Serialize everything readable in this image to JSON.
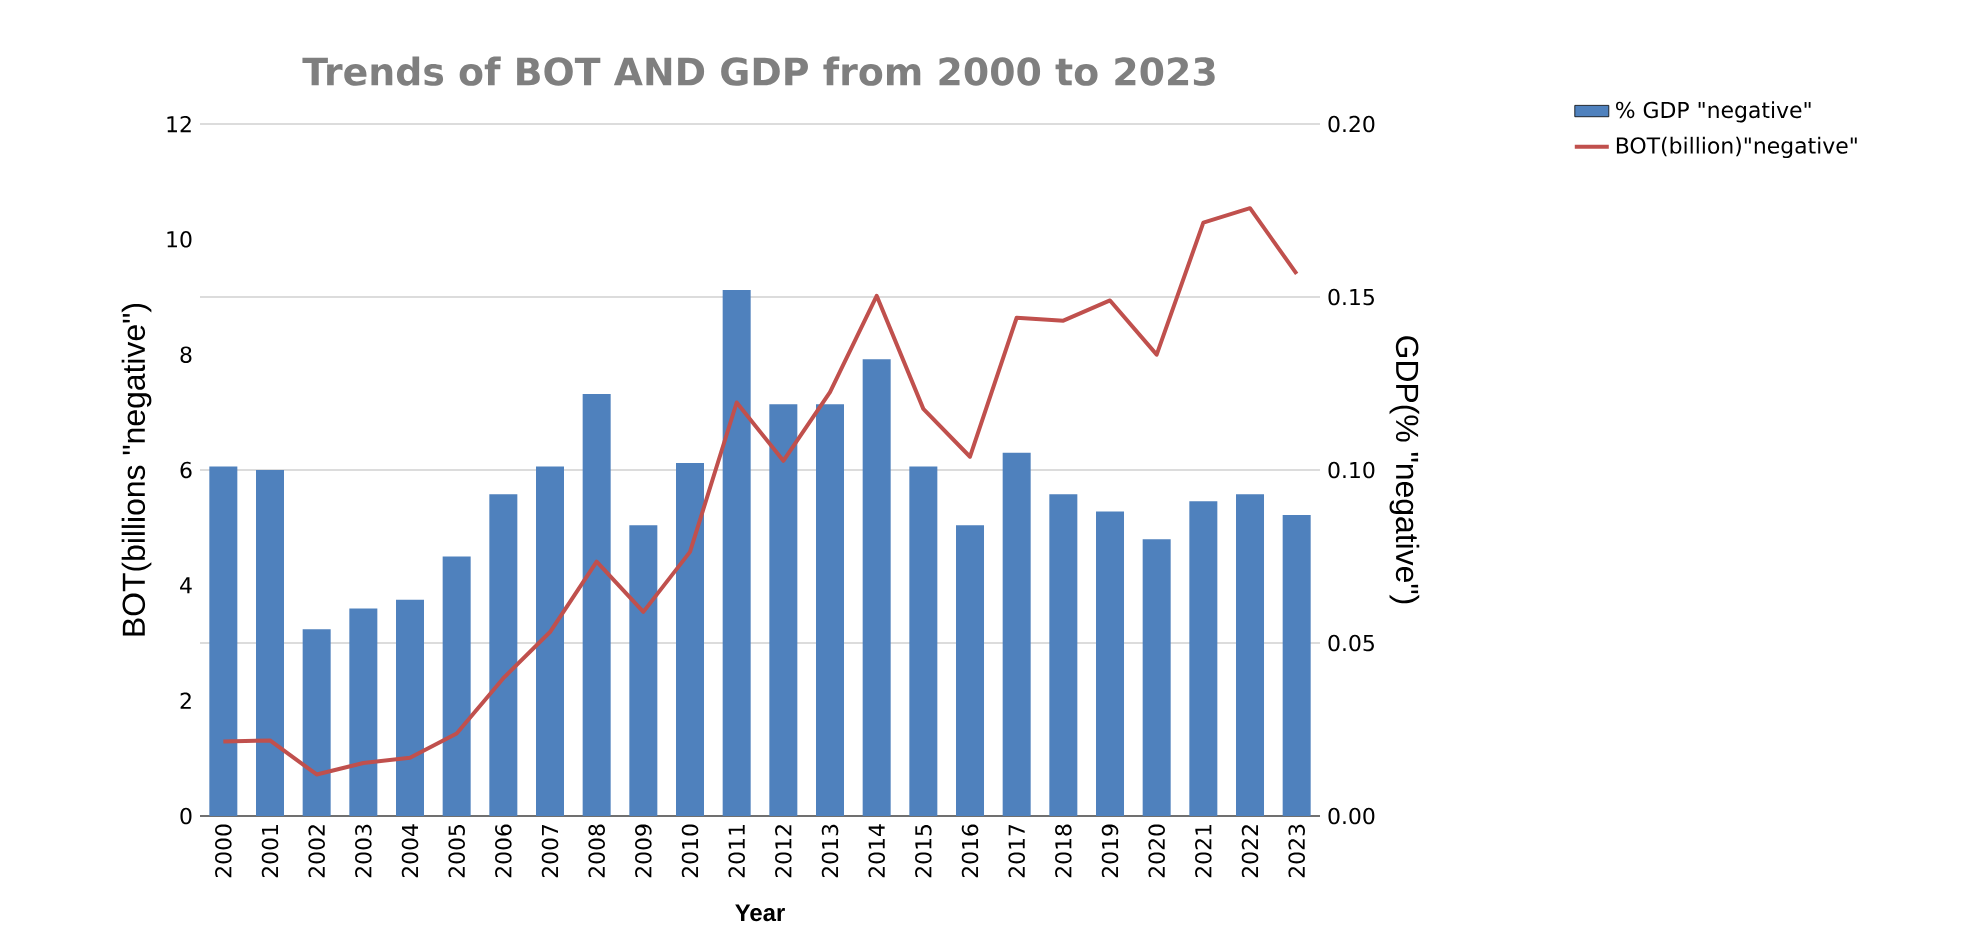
{
  "chart_data": {
    "type": "bar",
    "title": "Trends of BOT AND GDP from 2000 to 2023",
    "xlabel": "Year",
    "ylabel": "BOT(billions \"negative\")",
    "y2label": "GDP(% \"negative\")",
    "categories": [
      "2000",
      "2001",
      "2002",
      "2003",
      "2004",
      "2005",
      "2006",
      "2007",
      "2008",
      "2009",
      "2010",
      "2011",
      "2012",
      "2013",
      "2014",
      "2015",
      "2016",
      "2017",
      "2018",
      "2019",
      "2020",
      "2021",
      "2022",
      "2023"
    ],
    "series": [
      {
        "name": "% GDP \"negative\"",
        "axis": "y2",
        "color": "#4f81bd",
        "values": [
          0.101,
          0.1,
          0.054,
          0.06,
          0.0625,
          0.075,
          0.093,
          0.101,
          0.122,
          0.084,
          0.102,
          0.152,
          0.119,
          0.119,
          0.132,
          0.101,
          0.084,
          0.105,
          0.093,
          0.088,
          0.08,
          0.091,
          0.093,
          0.087
        ]
      },
      {
        "name": "BOT(billion)\"negative\"",
        "type": "line",
        "axis": "y",
        "color": "#c0504d",
        "values": [
          1.29,
          1.31,
          0.72,
          0.92,
          1.01,
          1.43,
          2.39,
          3.19,
          4.41,
          3.54,
          4.58,
          7.17,
          6.16,
          7.35,
          9.02,
          7.06,
          6.23,
          8.64,
          8.59,
          8.94,
          8.0,
          10.29,
          10.54,
          9.4
        ]
      }
    ],
    "ylim": [
      0,
      12
    ],
    "yticks": [
      0,
      2,
      4,
      6,
      8,
      10,
      12
    ],
    "y2lim": [
      0,
      0.2
    ],
    "y2ticks": [
      {
        "value": 0,
        "label": "0.00"
      },
      {
        "value": 0.05,
        "label": "0.05"
      },
      {
        "value": 0.1,
        "label": "0.10"
      },
      {
        "value": 0.15,
        "label": "0.15"
      },
      {
        "value": 0.2,
        "label": "0.20"
      }
    ],
    "grid": "y",
    "legend": "top right"
  }
}
